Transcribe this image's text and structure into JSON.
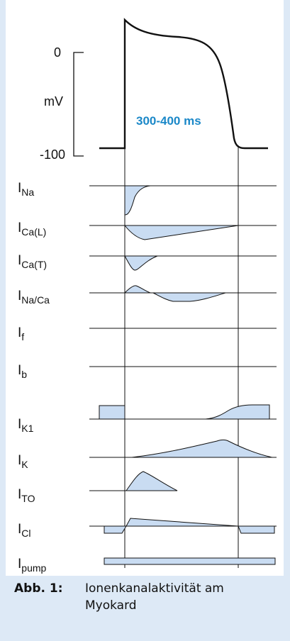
{
  "ap": {
    "y_top": "0",
    "y_unit": "mV",
    "y_bottom": "-100",
    "duration": "300-400 ms"
  },
  "currents": [
    {
      "main": "I",
      "sub": "Na"
    },
    {
      "main": "I",
      "sub": "Ca(L)"
    },
    {
      "main": "I",
      "sub": "Ca(T)"
    },
    {
      "main": "I",
      "sub": "Na/Ca"
    },
    {
      "main": "I",
      "sub": "f"
    },
    {
      "main": "I",
      "sub": "b"
    },
    {
      "main": "I",
      "sub": "K1"
    },
    {
      "main": "I",
      "sub": "K"
    },
    {
      "main": "I",
      "sub": "TO"
    },
    {
      "main": "I",
      "sub": "Cl"
    },
    {
      "main": "I",
      "sub": "pump"
    }
  ],
  "caption": {
    "number": "Abb. 1:",
    "text": "Ionenkanalaktivität am Myokard"
  },
  "colors": {
    "fill": "#c9dcf2",
    "accent": "#1b88c8",
    "line": "#111111",
    "background": "#dde9f6"
  }
}
